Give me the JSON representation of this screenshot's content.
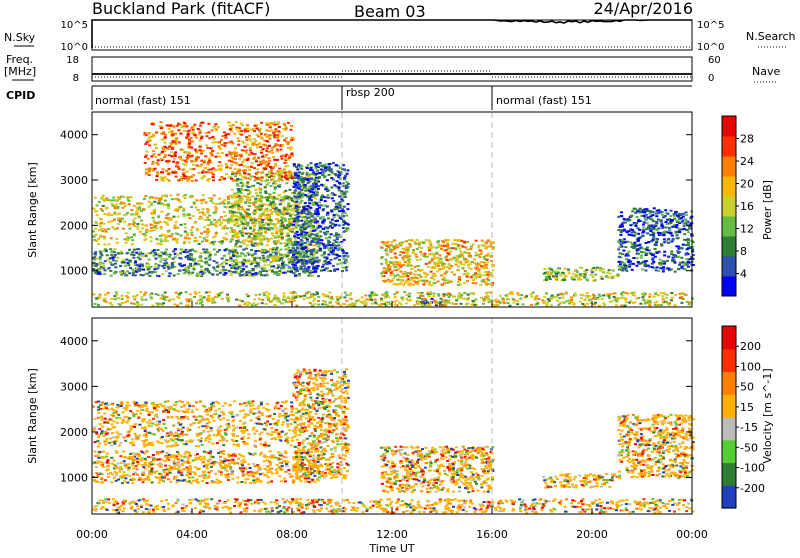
{
  "header": {
    "site": "Buckland Park (fitACF)",
    "beam": "Beam 03",
    "date": "24/Apr/2016"
  },
  "summary_panels": {
    "nsky_label": "N.Sky",
    "nsky_ticks": [
      "10^5",
      "10^0"
    ],
    "nsearch_label": "N.Search",
    "nsearch_ticks": [
      "10^5",
      "10^0"
    ],
    "freq_label_1": "Freq.",
    "freq_label_2": "[MHz]",
    "freq_ticks": [
      "18",
      "8"
    ],
    "nave_label": "Nave",
    "nave_ticks": [
      "60",
      "0"
    ],
    "cpid_label": "CPID",
    "cpid_segments": [
      {
        "label": "normal (fast) 151",
        "start_hour": 0
      },
      {
        "label": "rbsp 200",
        "start_hour": 10
      },
      {
        "label": "normal (fast) 151",
        "start_hour": 16
      }
    ]
  },
  "chart_data": [
    {
      "type": "heatmap",
      "panel": "power",
      "ylabel": "Slant Range [km]",
      "xlim_hours": [
        0,
        24
      ],
      "ylim": [
        200,
        4500
      ],
      "y_ticks": [
        1000,
        2000,
        3000,
        4000
      ],
      "colorbar_label": "Power [dB]",
      "colorbar_ticks": [
        "28",
        "24",
        "20",
        "16",
        "12",
        "8",
        "4"
      ],
      "colorbar_colors": [
        "#0000ff",
        "#3050b0",
        "#2e7d32",
        "#66bb44",
        "#c8d030",
        "#f5b800",
        "#ff8000",
        "#ff3000",
        "#ee0000"
      ],
      "echo_regions": [
        {
          "t0": 0,
          "t1": 9,
          "r0": 900,
          "r1": 1500,
          "level": 0.75
        },
        {
          "t0": 0,
          "t1": 8,
          "r0": 1600,
          "r1": 2700,
          "level": 0.45
        },
        {
          "t0": 5.5,
          "t1": 9,
          "r0": 1200,
          "r1": 3200,
          "level": 0.6
        },
        {
          "t0": 8,
          "t1": 10.2,
          "r0": 1000,
          "r1": 3400,
          "level": 0.85
        },
        {
          "t0": 2,
          "t1": 8,
          "r0": 3000,
          "r1": 4300,
          "level": 0.25
        },
        {
          "t0": 11.5,
          "t1": 16,
          "r0": 700,
          "r1": 1700,
          "level": 0.4
        },
        {
          "t0": 13,
          "t1": 14,
          "r0": 250,
          "r1": 400,
          "level": 0.95
        },
        {
          "t0": 18,
          "t1": 21,
          "r0": 800,
          "r1": 1100,
          "level": 0.6
        },
        {
          "t0": 21,
          "t1": 24,
          "r0": 1000,
          "r1": 2400,
          "level": 0.85
        },
        {
          "t0": 0,
          "t1": 24,
          "r0": 250,
          "r1": 550,
          "level": 0.5
        }
      ]
    },
    {
      "type": "heatmap",
      "panel": "velocity",
      "ylabel": "Slant Range [km]",
      "xlabel": "Time UT",
      "xlim_hours": [
        0,
        24
      ],
      "ylim": [
        200,
        4500
      ],
      "y_ticks": [
        1000,
        2000,
        3000,
        4000
      ],
      "x_ticks": [
        "00:00",
        "04:00",
        "08:00",
        "12:00",
        "16:00",
        "20:00",
        "00:00"
      ],
      "colorbar_label": "Velocity [m s^-1]",
      "colorbar_ticks": [
        "200",
        "100",
        "50",
        "15",
        "-15",
        "-50",
        "-100",
        "-200"
      ],
      "colorbar_colors": [
        "#2040c0",
        "#2e7d32",
        "#55cc33",
        "#bbbbbb",
        "#ffb000",
        "#ff8000",
        "#ff3000",
        "#ee0000"
      ],
      "echo_regions": [
        {
          "t0": 0,
          "t1": 9,
          "r0": 900,
          "r1": 1600,
          "level": 0.5
        },
        {
          "t0": 0,
          "t1": 8,
          "r0": 1700,
          "r1": 2700,
          "level": 0.5
        },
        {
          "t0": 8,
          "t1": 10.2,
          "r0": 1000,
          "r1": 3400,
          "level": 0.5
        },
        {
          "t0": 11.5,
          "t1": 16,
          "r0": 700,
          "r1": 1700,
          "level": 0.3
        },
        {
          "t0": 18,
          "t1": 21,
          "r0": 800,
          "r1": 1100,
          "level": 0.25
        },
        {
          "t0": 21,
          "t1": 24,
          "r0": 1000,
          "r1": 2400,
          "level": 0.5
        },
        {
          "t0": 0,
          "t1": 24,
          "r0": 250,
          "r1": 550,
          "level": 0.35
        }
      ]
    }
  ]
}
